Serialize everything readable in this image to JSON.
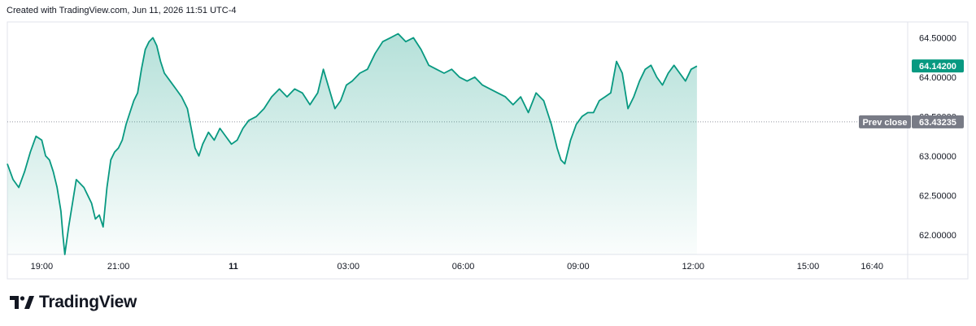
{
  "header": {
    "created_text": "Created with TradingView.com, Jun 11, 2026 11:51 UTC-4"
  },
  "footer": {
    "brand": "TradingView",
    "logo_icon": "tradingview-logo-icon"
  },
  "colors": {
    "line": "#089981",
    "fill_top": "#089981",
    "current_badge": "#089981",
    "prev_close_badge": "#787b86",
    "axis_text": "#131722",
    "frame": "#e0e3eb"
  },
  "chart_data": {
    "type": "area",
    "title": "",
    "xlabel": "",
    "ylabel": "",
    "ylim": [
      61.75,
      64.7
    ],
    "grid": false,
    "y_ticks": [
      "64.50000",
      "64.00000",
      "63.50000",
      "63.00000",
      "62.50000",
      "62.00000"
    ],
    "y_tick_values": [
      64.5,
      64.0,
      63.5,
      63.0,
      62.5,
      62.0
    ],
    "x_ticks": [
      "19:00",
      "21:00",
      "11",
      "03:00",
      "06:00",
      "09:00",
      "12:00",
      "15:00",
      "16:40"
    ],
    "x_tick_hours": [
      0,
      2,
      5,
      8,
      11,
      14,
      17,
      20,
      21.67
    ],
    "x_range_hours": [
      -0.9,
      22.6
    ],
    "x_origin": "Jun 10 19:00",
    "current_price": {
      "label": "64.14200",
      "value": 64.142
    },
    "prev_close": {
      "label": "Prev close",
      "value_label": "63.43235",
      "value": 63.43235
    },
    "series": [
      {
        "points": [
          [
            -0.9,
            62.9
          ],
          [
            -0.75,
            62.7
          ],
          [
            -0.6,
            62.6
          ],
          [
            -0.45,
            62.8
          ],
          [
            -0.3,
            63.05
          ],
          [
            -0.15,
            63.25
          ],
          [
            0.0,
            63.2
          ],
          [
            0.1,
            63.0
          ],
          [
            0.2,
            62.95
          ],
          [
            0.3,
            62.8
          ],
          [
            0.4,
            62.6
          ],
          [
            0.5,
            62.3
          ],
          [
            0.55,
            62.0
          ],
          [
            0.6,
            61.75
          ],
          [
            0.7,
            62.1
          ],
          [
            0.8,
            62.4
          ],
          [
            0.9,
            62.7
          ],
          [
            1.0,
            62.65
          ],
          [
            1.1,
            62.6
          ],
          [
            1.2,
            62.5
          ],
          [
            1.3,
            62.4
          ],
          [
            1.4,
            62.2
          ],
          [
            1.5,
            62.25
          ],
          [
            1.6,
            62.1
          ],
          [
            1.7,
            62.6
          ],
          [
            1.8,
            62.95
          ],
          [
            1.9,
            63.05
          ],
          [
            2.0,
            63.1
          ],
          [
            2.1,
            63.2
          ],
          [
            2.2,
            63.4
          ],
          [
            2.3,
            63.55
          ],
          [
            2.4,
            63.7
          ],
          [
            2.5,
            63.8
          ],
          [
            2.6,
            64.1
          ],
          [
            2.7,
            64.35
          ],
          [
            2.8,
            64.45
          ],
          [
            2.9,
            64.5
          ],
          [
            3.0,
            64.4
          ],
          [
            3.1,
            64.2
          ],
          [
            3.2,
            64.05
          ],
          [
            3.35,
            63.95
          ],
          [
            3.5,
            63.85
          ],
          [
            3.65,
            63.75
          ],
          [
            3.8,
            63.6
          ],
          [
            3.9,
            63.35
          ],
          [
            4.0,
            63.1
          ],
          [
            4.1,
            63.0
          ],
          [
            4.2,
            63.15
          ],
          [
            4.35,
            63.3
          ],
          [
            4.5,
            63.2
          ],
          [
            4.65,
            63.35
          ],
          [
            4.8,
            63.25
          ],
          [
            4.95,
            63.15
          ],
          [
            5.1,
            63.2
          ],
          [
            5.25,
            63.35
          ],
          [
            5.4,
            63.45
          ],
          [
            5.6,
            63.5
          ],
          [
            5.8,
            63.6
          ],
          [
            6.0,
            63.75
          ],
          [
            6.2,
            63.85
          ],
          [
            6.4,
            63.75
          ],
          [
            6.6,
            63.85
          ],
          [
            6.8,
            63.8
          ],
          [
            7.0,
            63.65
          ],
          [
            7.2,
            63.8
          ],
          [
            7.35,
            64.1
          ],
          [
            7.5,
            63.85
          ],
          [
            7.65,
            63.6
          ],
          [
            7.8,
            63.7
          ],
          [
            7.95,
            63.9
          ],
          [
            8.1,
            63.95
          ],
          [
            8.3,
            64.05
          ],
          [
            8.5,
            64.1
          ],
          [
            8.7,
            64.3
          ],
          [
            8.9,
            64.45
          ],
          [
            9.1,
            64.5
          ],
          [
            9.3,
            64.55
          ],
          [
            9.5,
            64.45
          ],
          [
            9.7,
            64.5
          ],
          [
            9.9,
            64.35
          ],
          [
            10.1,
            64.15
          ],
          [
            10.3,
            64.1
          ],
          [
            10.5,
            64.05
          ],
          [
            10.7,
            64.1
          ],
          [
            10.9,
            64.0
          ],
          [
            11.1,
            63.95
          ],
          [
            11.3,
            64.0
          ],
          [
            11.5,
            63.9
          ],
          [
            11.7,
            63.85
          ],
          [
            11.9,
            63.8
          ],
          [
            12.1,
            63.75
          ],
          [
            12.3,
            63.65
          ],
          [
            12.5,
            63.75
          ],
          [
            12.7,
            63.55
          ],
          [
            12.9,
            63.8
          ],
          [
            13.1,
            63.7
          ],
          [
            13.3,
            63.4
          ],
          [
            13.45,
            63.1
          ],
          [
            13.55,
            62.95
          ],
          [
            13.65,
            62.9
          ],
          [
            13.8,
            63.2
          ],
          [
            13.95,
            63.4
          ],
          [
            14.1,
            63.5
          ],
          [
            14.25,
            63.55
          ],
          [
            14.4,
            63.55
          ],
          [
            14.55,
            63.7
          ],
          [
            14.7,
            63.75
          ],
          [
            14.85,
            63.8
          ],
          [
            15.0,
            64.2
          ],
          [
            15.15,
            64.05
          ],
          [
            15.3,
            63.6
          ],
          [
            15.45,
            63.75
          ],
          [
            15.6,
            63.95
          ],
          [
            15.75,
            64.1
          ],
          [
            15.9,
            64.15
          ],
          [
            16.05,
            64.0
          ],
          [
            16.2,
            63.9
          ],
          [
            16.35,
            64.05
          ],
          [
            16.5,
            64.15
          ],
          [
            16.65,
            64.05
          ],
          [
            16.8,
            63.95
          ],
          [
            16.95,
            64.1
          ],
          [
            17.1,
            64.14
          ]
        ]
      }
    ]
  }
}
